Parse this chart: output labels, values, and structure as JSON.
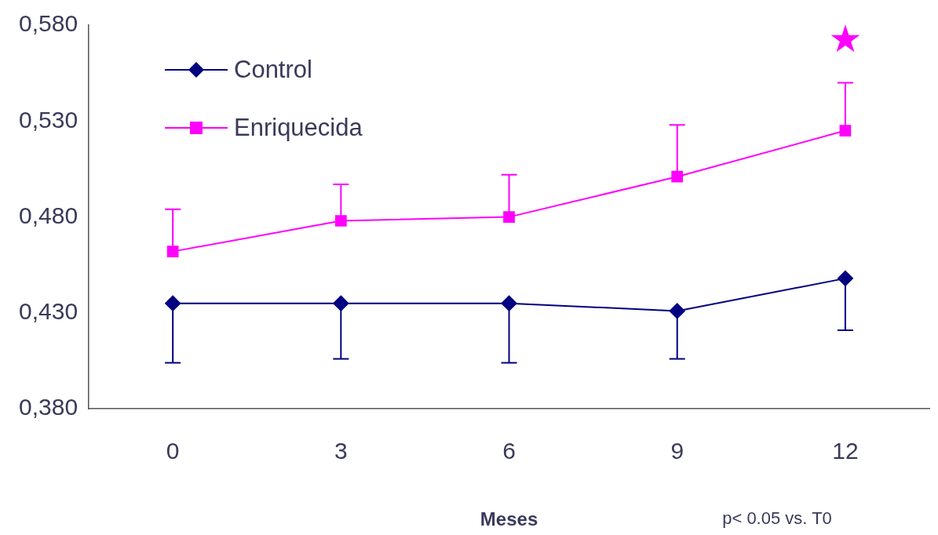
{
  "chart_data": {
    "type": "line",
    "xlabel": "Meses",
    "categories": [
      "0",
      "3",
      "6",
      "9",
      "12"
    ],
    "series": [
      {
        "name": "Control",
        "color": "#000080",
        "marker": "diamond",
        "values": [
          0.435,
          0.435,
          0.435,
          0.431,
          0.448
        ],
        "errors": [
          [
            0.404,
            0.435
          ],
          [
            0.406,
            0.435
          ],
          [
            0.404,
            0.435
          ],
          [
            0.406,
            0.431
          ],
          [
            0.421,
            0.448
          ]
        ]
      },
      {
        "name": "Enriquecida",
        "color": "#ff00ff",
        "marker": "square",
        "values": [
          0.462,
          0.478,
          0.48,
          0.501,
          0.525
        ],
        "errors": [
          [
            0.462,
            0.484
          ],
          [
            0.478,
            0.497
          ],
          [
            0.48,
            0.502
          ],
          [
            0.501,
            0.528
          ],
          [
            0.525,
            0.55
          ]
        ]
      }
    ],
    "ylim": [
      0.38,
      0.58
    ],
    "yticks": [
      {
        "value": 0.38,
        "label": "0,380"
      },
      {
        "value": 0.43,
        "label": "0,430"
      },
      {
        "value": 0.48,
        "label": "0,480"
      },
      {
        "value": 0.53,
        "label": "0,530"
      },
      {
        "value": 0.58,
        "label": "0,580"
      }
    ],
    "grid": false,
    "legend": "top left",
    "line_style": "solid",
    "annotations": [
      "★",
      "p< 0.05 vs. T0"
    ]
  }
}
